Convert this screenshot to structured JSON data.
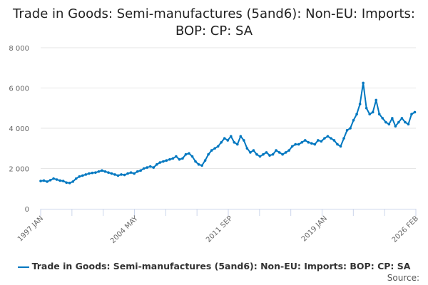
{
  "chart_data": {
    "type": "line",
    "title": "Trade in Goods: Semi-manufactures (5and6): Non-EU: Imports: BOP: CP: SA",
    "xlabel": "",
    "ylabel": "",
    "ylim": [
      0,
      8000
    ],
    "yticks": [
      "0",
      "2 000",
      "4 000",
      "6 000",
      "8 000"
    ],
    "yticks_values": [
      0,
      2000,
      4000,
      6000,
      8000
    ],
    "xticks": [
      "1997 JAN",
      "2004 MAY",
      "2011 SEP",
      "2019 JAN",
      "2026 FEB"
    ],
    "xticks_years": [
      1997.0,
      2004.333,
      2011.667,
      2019.0,
      2026.083
    ],
    "xlim": [
      1997.0,
      2026.083
    ],
    "grid": true,
    "legend_position": "bottom",
    "series": [
      {
        "name": "Trade in Goods: Semi-manufactures (5and6): Non-EU: Imports: BOP: CP: SA",
        "color": "#0077c0",
        "start_year": 1997.0,
        "step_years": 0.25,
        "values": [
          1380,
          1400,
          1350,
          1420,
          1500,
          1450,
          1400,
          1380,
          1300,
          1280,
          1350,
          1500,
          1600,
          1650,
          1700,
          1750,
          1780,
          1800,
          1850,
          1900,
          1850,
          1800,
          1750,
          1700,
          1650,
          1700,
          1680,
          1750,
          1800,
          1750,
          1850,
          1900,
          2000,
          2050,
          2100,
          2050,
          2200,
          2300,
          2350,
          2400,
          2450,
          2500,
          2600,
          2450,
          2500,
          2700,
          2750,
          2600,
          2350,
          2200,
          2150,
          2400,
          2700,
          2900,
          3000,
          3100,
          3300,
          3500,
          3400,
          3600,
          3300,
          3200,
          3600,
          3400,
          3000,
          2800,
          2900,
          2700,
          2600,
          2700,
          2800,
          2650,
          2700,
          2900,
          2800,
          2700,
          2800,
          2900,
          3100,
          3200,
          3200,
          3300,
          3400,
          3300,
          3250,
          3200,
          3400,
          3350,
          3500,
          3600,
          3500,
          3400,
          3200,
          3100,
          3500,
          3900,
          4000,
          4400,
          4700,
          5200,
          6250,
          5000,
          4700,
          4800,
          5400,
          4700,
          4500,
          4300,
          4200,
          4500,
          4100,
          4300,
          4500,
          4300,
          4200,
          4700,
          4800
        ]
      }
    ]
  },
  "source_label": "Source:"
}
